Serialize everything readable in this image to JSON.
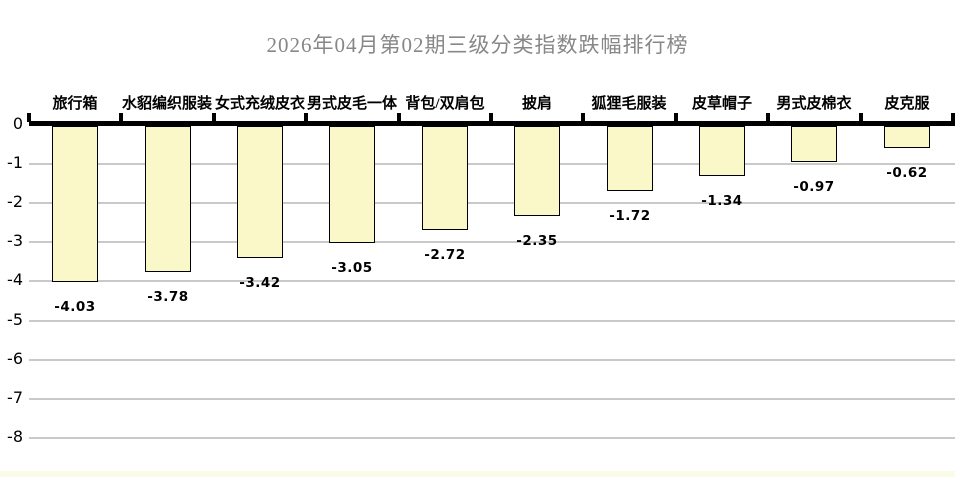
{
  "chart_data": {
    "type": "bar",
    "orientation": "vertical",
    "title": "2026年04月第02期三级分类指数跌幅排行榜",
    "categories": [
      "旅行箱",
      "水貂编织服装",
      "女式充绒皮衣",
      "男式皮毛一体",
      "背包/双肩包",
      "披肩",
      "狐狸毛服装",
      "皮草帽子",
      "男式皮棉衣",
      "皮克服"
    ],
    "values": [
      -4.03,
      -3.78,
      -3.42,
      -3.05,
      -2.72,
      -2.35,
      -1.72,
      -1.34,
      -0.97,
      -0.62
    ],
    "value_labels": [
      "-4.03",
      "-3.78",
      "-3.42",
      "-3.05",
      "-2.72",
      "-2.35",
      "-1.72",
      "-1.34",
      "-0.97",
      "-0.62"
    ],
    "xlabel": "",
    "ylabel": "",
    "ylim": [
      -8,
      0
    ],
    "yticks": [
      0,
      -1,
      -2,
      -3,
      -4,
      -5,
      -6,
      -7,
      -8
    ],
    "ytick_labels": [
      "0",
      "-1",
      "-2",
      "-3",
      "-4",
      "-5",
      "-6",
      "-7",
      "-8"
    ],
    "grid": "horizontal-only",
    "legend": "none",
    "category_label_position": "above-zero-axis",
    "value_label_position": "below-bar-end",
    "colors": {
      "background": "#FFFFFF",
      "bar_fill": "#FAF7C9",
      "bar_border": "#000000",
      "axis": "#000000",
      "gridline": "#C9C9C9",
      "text": "#000000",
      "title": "#878787",
      "footer_strip": "#FBFBE9"
    }
  }
}
